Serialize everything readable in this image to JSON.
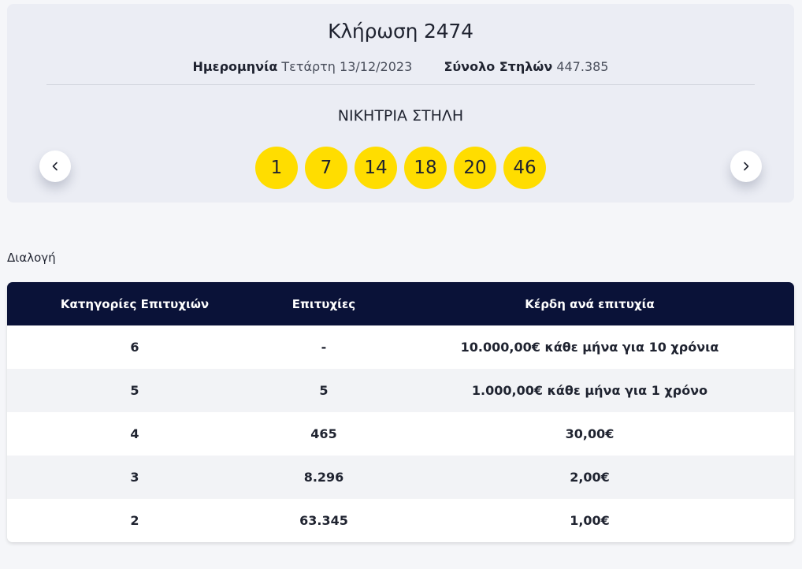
{
  "draw": {
    "title": "Κλήρωση 2474",
    "date_label": "Ημερομηνία",
    "date_value": "Τετάρτη 13/12/2023",
    "columns_label": "Σύνολο Στηλών",
    "columns_value": "447.385",
    "winning_title": "ΝΙΚΗΤΡΙΑ ΣΤΗΛΗ",
    "numbers": [
      "1",
      "7",
      "14",
      "18",
      "20",
      "46"
    ],
    "ball_color": "#ffdd00"
  },
  "nav": {
    "prev_icon": "chevron-left-icon",
    "next_icon": "chevron-right-icon"
  },
  "filter": {
    "label": "Διαλογή"
  },
  "table": {
    "header_color": "#0a1238",
    "headers": [
      "Κατηγορίες Επιτυχιών",
      "Επιτυχίες",
      "Κέρδη ανά επιτυχία"
    ],
    "rows": [
      [
        "6",
        "-",
        "10.000,00€ κάθε μήνα για 10 χρόνια"
      ],
      [
        "5",
        "5",
        "1.000,00€ κάθε μήνα για 1 χρόνο"
      ],
      [
        "4",
        "465",
        "30,00€"
      ],
      [
        "3",
        "8.296",
        "2,00€"
      ],
      [
        "2",
        "63.345",
        "1,00€"
      ]
    ]
  }
}
